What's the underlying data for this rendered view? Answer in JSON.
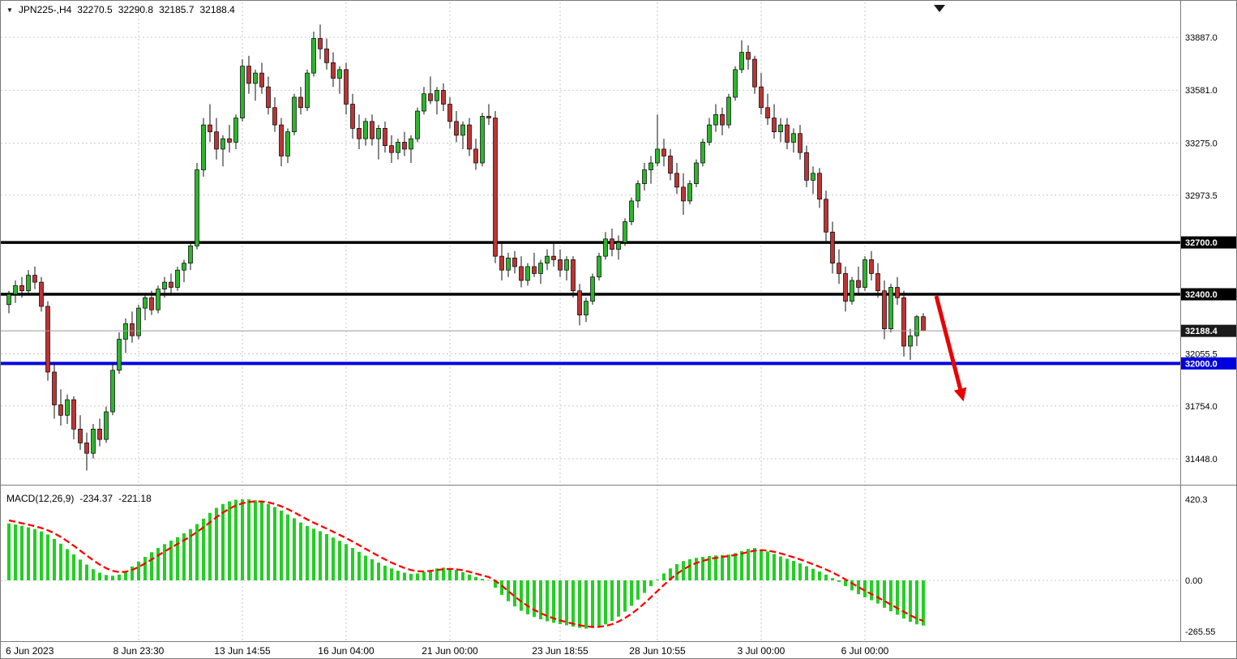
{
  "header": {
    "symbol_tf": "JPN225-,H4",
    "open": "32270.5",
    "high": "32290.8",
    "low": "32185.7",
    "close": "32188.4"
  },
  "macd": {
    "title": "MACD(12,26,9)",
    "value": "-234.37",
    "signal": "-221.18"
  },
  "chart_data": [
    {
      "type": "candlestick",
      "symbol": "JPN225-",
      "timeframe": "H4",
      "bull_color": "#2DB52D",
      "bear_color": "#BE3434",
      "wick_color": "#111111",
      "ylim": [
        31298,
        34098
      ],
      "y_ticks": [
        {
          "label": "33887.0",
          "value": 33887.0
        },
        {
          "label": "33581.0",
          "value": 33581.0
        },
        {
          "label": "33275.0",
          "value": 33275.0
        },
        {
          "label": "32973.5",
          "value": 32973.5
        },
        {
          "label": "32055.5",
          "value": 32055.5
        },
        {
          "label": "31754.0",
          "value": 31754.0
        },
        {
          "label": "31448.0",
          "value": 31448.0
        }
      ],
      "x_ticks": [
        {
          "label": "6 Jun 2023",
          "bar": 0
        },
        {
          "label": "8 Jun 23:30",
          "bar": 20
        },
        {
          "label": "13 Jun 14:55",
          "bar": 36
        },
        {
          "label": "16 Jun 04:00",
          "bar": 52
        },
        {
          "label": "21 Jun 00:00",
          "bar": 68
        },
        {
          "label": "23 Jun 18:55",
          "bar": 85
        },
        {
          "label": "28 Jun 10:55",
          "bar": 100
        },
        {
          "label": "3 Jul 00:00",
          "bar": 116
        },
        {
          "label": "6 Jul 00:00",
          "bar": 132
        }
      ],
      "hlines": [
        {
          "value": 32700.0,
          "label": "32700.0",
          "color": "#000000",
          "width": 3.5
        },
        {
          "value": 32400.0,
          "label": "32400.0",
          "color": "#000000",
          "width": 3.5
        },
        {
          "value": 32000.0,
          "label": "32000.0",
          "color": "#0202DE",
          "width": 4
        }
      ],
      "last_price": {
        "value": 32188.4,
        "label": "32188.4",
        "line_color": "#9a9a9a",
        "tag_color": "#1a1a1a"
      },
      "annotations": [
        {
          "type": "arrow",
          "color": "#E80000",
          "from_bar": 143,
          "from_price": 32390,
          "to_bar": 147.2,
          "to_price": 31780
        }
      ],
      "candles": [
        [
          32340,
          32420,
          32290,
          32400
        ],
        [
          32400,
          32480,
          32350,
          32450
        ],
        [
          32450,
          32500,
          32380,
          32420
        ],
        [
          32420,
          32540,
          32400,
          32510
        ],
        [
          32510,
          32560,
          32430,
          32470
        ],
        [
          32470,
          32500,
          32300,
          32330
        ],
        [
          32330,
          32360,
          31900,
          31950
        ],
        [
          31950,
          32000,
          31680,
          31760
        ],
        [
          31760,
          31850,
          31640,
          31700
        ],
        [
          31700,
          31820,
          31650,
          31790
        ],
        [
          31790,
          31810,
          31560,
          31620
        ],
        [
          31620,
          31700,
          31500,
          31540
        ],
        [
          31540,
          31600,
          31380,
          31480
        ],
        [
          31480,
          31650,
          31450,
          31620
        ],
        [
          31620,
          31680,
          31520,
          31560
        ],
        [
          31560,
          31750,
          31540,
          31720
        ],
        [
          31720,
          32000,
          31700,
          31960
        ],
        [
          31960,
          32180,
          31940,
          32140
        ],
        [
          32140,
          32260,
          32060,
          32230
        ],
        [
          32230,
          32300,
          32120,
          32160
        ],
        [
          32160,
          32340,
          32140,
          32320
        ],
        [
          32320,
          32400,
          32250,
          32380
        ],
        [
          32380,
          32420,
          32280,
          32310
        ],
        [
          32310,
          32450,
          32290,
          32430
        ],
        [
          32430,
          32500,
          32380,
          32470
        ],
        [
          32470,
          32520,
          32400,
          32440
        ],
        [
          32440,
          32560,
          32420,
          32540
        ],
        [
          32540,
          32600,
          32470,
          32580
        ],
        [
          32580,
          32700,
          32540,
          32680
        ],
        [
          32680,
          33160,
          32660,
          33120
        ],
        [
          33120,
          33420,
          33080,
          33380
        ],
        [
          33380,
          33500,
          33280,
          33340
        ],
        [
          33340,
          33420,
          33180,
          33240
        ],
        [
          33240,
          33320,
          33140,
          33300
        ],
        [
          33300,
          33380,
          33220,
          33280
        ],
        [
          33280,
          33440,
          33240,
          33420
        ],
        [
          33420,
          33760,
          33400,
          33720
        ],
        [
          33720,
          33780,
          33560,
          33620
        ],
        [
          33620,
          33700,
          33520,
          33680
        ],
        [
          33680,
          33740,
          33560,
          33600
        ],
        [
          33600,
          33660,
          33440,
          33480
        ],
        [
          33480,
          33540,
          33340,
          33380
        ],
        [
          33380,
          33420,
          33140,
          33200
        ],
        [
          33200,
          33360,
          33160,
          33340
        ],
        [
          33340,
          33560,
          33320,
          33540
        ],
        [
          33540,
          33600,
          33440,
          33480
        ],
        [
          33480,
          33700,
          33460,
          33680
        ],
        [
          33680,
          33920,
          33660,
          33880
        ],
        [
          33880,
          33960,
          33760,
          33820
        ],
        [
          33820,
          33880,
          33700,
          33740
        ],
        [
          33740,
          33800,
          33600,
          33650
        ],
        [
          33650,
          33720,
          33560,
          33700
        ],
        [
          33700,
          33740,
          33440,
          33500
        ],
        [
          33500,
          33560,
          33300,
          33360
        ],
        [
          33360,
          33440,
          33240,
          33300
        ],
        [
          33300,
          33420,
          33260,
          33400
        ],
        [
          33400,
          33440,
          33260,
          33300
        ],
        [
          33300,
          33380,
          33180,
          33360
        ],
        [
          33360,
          33400,
          33220,
          33260
        ],
        [
          33260,
          33320,
          33160,
          33220
        ],
        [
          33220,
          33300,
          33180,
          33280
        ],
        [
          33280,
          33340,
          33200,
          33240
        ],
        [
          33240,
          33320,
          33160,
          33300
        ],
        [
          33300,
          33480,
          33280,
          33460
        ],
        [
          33460,
          33600,
          33440,
          33560
        ],
        [
          33560,
          33660,
          33500,
          33520
        ],
        [
          33520,
          33600,
          33440,
          33580
        ],
        [
          33580,
          33620,
          33460,
          33500
        ],
        [
          33500,
          33540,
          33360,
          33400
        ],
        [
          33400,
          33460,
          33280,
          33320
        ],
        [
          33320,
          33400,
          33240,
          33380
        ],
        [
          33380,
          33420,
          33200,
          33240
        ],
        [
          33240,
          33300,
          33120,
          33160
        ],
        [
          33160,
          33450,
          33140,
          33430
        ],
        [
          33430,
          33500,
          33380,
          33420
        ],
        [
          33420,
          33460,
          32580,
          32620
        ],
        [
          32620,
          32700,
          32480,
          32540
        ],
        [
          32540,
          32640,
          32500,
          32610
        ],
        [
          32610,
          32650,
          32520,
          32560
        ],
        [
          32560,
          32620,
          32440,
          32480
        ],
        [
          32480,
          32580,
          32450,
          32560
        ],
        [
          32560,
          32640,
          32500,
          32520
        ],
        [
          32520,
          32600,
          32460,
          32580
        ],
        [
          32580,
          32660,
          32540,
          32620
        ],
        [
          32620,
          32700,
          32560,
          32600
        ],
        [
          32600,
          32660,
          32500,
          32540
        ],
        [
          32540,
          32620,
          32480,
          32600
        ],
        [
          32600,
          32620,
          32380,
          32420
        ],
        [
          32420,
          32460,
          32220,
          32280
        ],
        [
          32280,
          32380,
          32240,
          32360
        ],
        [
          32360,
          32520,
          32340,
          32500
        ],
        [
          32500,
          32640,
          32480,
          32620
        ],
        [
          32620,
          32760,
          32600,
          32720
        ],
        [
          32720,
          32780,
          32620,
          32660
        ],
        [
          32660,
          32740,
          32600,
          32700
        ],
        [
          32700,
          32840,
          32680,
          32820
        ],
        [
          32820,
          32960,
          32800,
          32940
        ],
        [
          32940,
          33060,
          32900,
          33040
        ],
        [
          33040,
          33160,
          33000,
          33120
        ],
        [
          33120,
          33200,
          33040,
          33160
        ],
        [
          33160,
          33440,
          33140,
          33240
        ],
        [
          33240,
          33300,
          33140,
          33200
        ],
        [
          33200,
          33240,
          33060,
          33100
        ],
        [
          33100,
          33160,
          32980,
          33020
        ],
        [
          33020,
          33100,
          32860,
          32940
        ],
        [
          32940,
          33060,
          32920,
          33040
        ],
        [
          33040,
          33180,
          33020,
          33160
        ],
        [
          33160,
          33300,
          33140,
          33280
        ],
        [
          33280,
          33420,
          33260,
          33380
        ],
        [
          33380,
          33500,
          33340,
          33440
        ],
        [
          33440,
          33480,
          33320,
          33380
        ],
        [
          33380,
          33560,
          33360,
          33540
        ],
        [
          33540,
          33720,
          33520,
          33700
        ],
        [
          33700,
          33870,
          33680,
          33800
        ],
        [
          33800,
          33840,
          33700,
          33760
        ],
        [
          33760,
          33780,
          33560,
          33600
        ],
        [
          33600,
          33680,
          33440,
          33480
        ],
        [
          33480,
          33560,
          33380,
          33420
        ],
        [
          33420,
          33500,
          33300,
          33340
        ],
        [
          33340,
          33420,
          33280,
          33380
        ],
        [
          33380,
          33420,
          33240,
          33280
        ],
        [
          33280,
          33360,
          33220,
          33330
        ],
        [
          33330,
          33380,
          33180,
          33220
        ],
        [
          33220,
          33260,
          33020,
          33060
        ],
        [
          33060,
          33140,
          32980,
          33100
        ],
        [
          33100,
          33130,
          32900,
          32950
        ],
        [
          32950,
          33000,
          32700,
          32760
        ],
        [
          32760,
          32820,
          32520,
          32580
        ],
        [
          32580,
          32660,
          32460,
          32520
        ],
        [
          32520,
          32560,
          32300,
          32360
        ],
        [
          32360,
          32500,
          32340,
          32480
        ],
        [
          32480,
          32560,
          32400,
          32440
        ],
        [
          32440,
          32620,
          32420,
          32600
        ],
        [
          32600,
          32650,
          32480,
          32520
        ],
        [
          32520,
          32580,
          32380,
          32420
        ],
        [
          32420,
          32480,
          32140,
          32200
        ],
        [
          32200,
          32460,
          32180,
          32440
        ],
        [
          32440,
          32500,
          32340,
          32380
        ],
        [
          32380,
          32420,
          32040,
          32100
        ],
        [
          32100,
          32200,
          32020,
          32160
        ],
        [
          32160,
          32280,
          32100,
          32270
        ],
        [
          32270.5,
          32290.8,
          32185.7,
          32188.4
        ]
      ]
    },
    {
      "type": "macd",
      "title": "MACD(12,26,9)",
      "macd_value": -234.37,
      "signal_value": -221.18,
      "histogram_color": "#24CE24",
      "signal_color": "#FF0000",
      "signal_seed": 320,
      "signal_alpha": 0.35,
      "ylim": [
        -315,
        483
      ],
      "y_ticks": [
        {
          "label": "420.3",
          "value": 420.3
        },
        {
          "label": "0.00",
          "value": 0
        },
        {
          "label": "-265.55",
          "value": -265.55
        }
      ],
      "histogram": [
        295,
        290,
        283,
        275,
        266,
        254,
        238,
        215,
        190,
        162,
        135,
        108,
        82,
        58,
        40,
        28,
        24,
        30,
        48,
        72,
        98,
        122,
        146,
        168,
        188,
        206,
        224,
        244,
        266,
        292,
        320,
        350,
        376,
        396,
        410,
        418,
        421,
        420,
        415,
        408,
        396,
        380,
        362,
        342,
        322,
        300,
        282,
        268,
        255,
        240,
        222,
        205,
        188,
        168,
        148,
        128,
        110,
        92,
        76,
        62,
        50,
        40,
        34,
        36,
        44,
        54,
        62,
        66,
        62,
        54,
        43,
        30,
        18,
        8,
        2,
        -38,
        -75,
        -108,
        -135,
        -158,
        -176,
        -190,
        -202,
        -212,
        -220,
        -227,
        -233,
        -240,
        -246,
        -250,
        -247,
        -240,
        -228,
        -210,
        -188,
        -162,
        -132,
        -100,
        -65,
        -30,
        4,
        36,
        62,
        84,
        100,
        110,
        117,
        122,
        126,
        129,
        131,
        134,
        141,
        152,
        163,
        168,
        161,
        150,
        137,
        124,
        112,
        101,
        88,
        73,
        60,
        46,
        30,
        12,
        -8,
        -30,
        -52,
        -72,
        -88,
        -103,
        -120,
        -142,
        -160,
        -178,
        -198,
        -215,
        -228,
        -234.37
      ]
    }
  ]
}
